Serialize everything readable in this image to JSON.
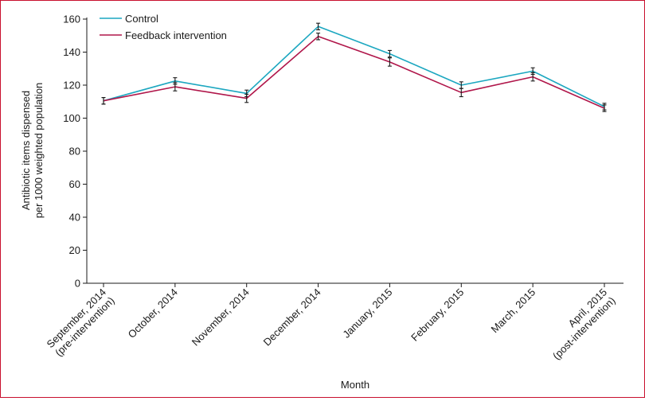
{
  "chart_data": {
    "type": "line",
    "xlabel": "Month",
    "ylabel": [
      "Antibiotic items dispensed",
      "per 1000 weighted population"
    ],
    "ylim": [
      0,
      160
    ],
    "yticks": [
      0,
      20,
      40,
      60,
      80,
      100,
      120,
      140,
      160
    ],
    "categories": [
      [
        "September, 2014",
        "(pre-intervention)"
      ],
      [
        "October, 2014"
      ],
      [
        "November, 2014"
      ],
      [
        "December, 2014"
      ],
      [
        "January, 2015"
      ],
      [
        "February, 2015"
      ],
      [
        "March, 2015"
      ],
      [
        "April, 2015",
        "(post-intervention)"
      ]
    ],
    "legend_position": "top-left",
    "grid": false,
    "series": [
      {
        "name": "Control",
        "color": "#1ca7c0",
        "values": [
          110.5,
          122.5,
          115,
          155.5,
          139,
          120,
          128.5,
          107
        ],
        "error": [
          2,
          2,
          2,
          2,
          2,
          2,
          2,
          2
        ]
      },
      {
        "name": "Feedback intervention",
        "color": "#b0164a",
        "values": [
          110.5,
          119,
          112,
          149.5,
          134,
          115.5,
          125,
          106
        ],
        "error": [
          2,
          2.5,
          2.5,
          2,
          2.5,
          2.5,
          2.5,
          2
        ]
      }
    ]
  }
}
